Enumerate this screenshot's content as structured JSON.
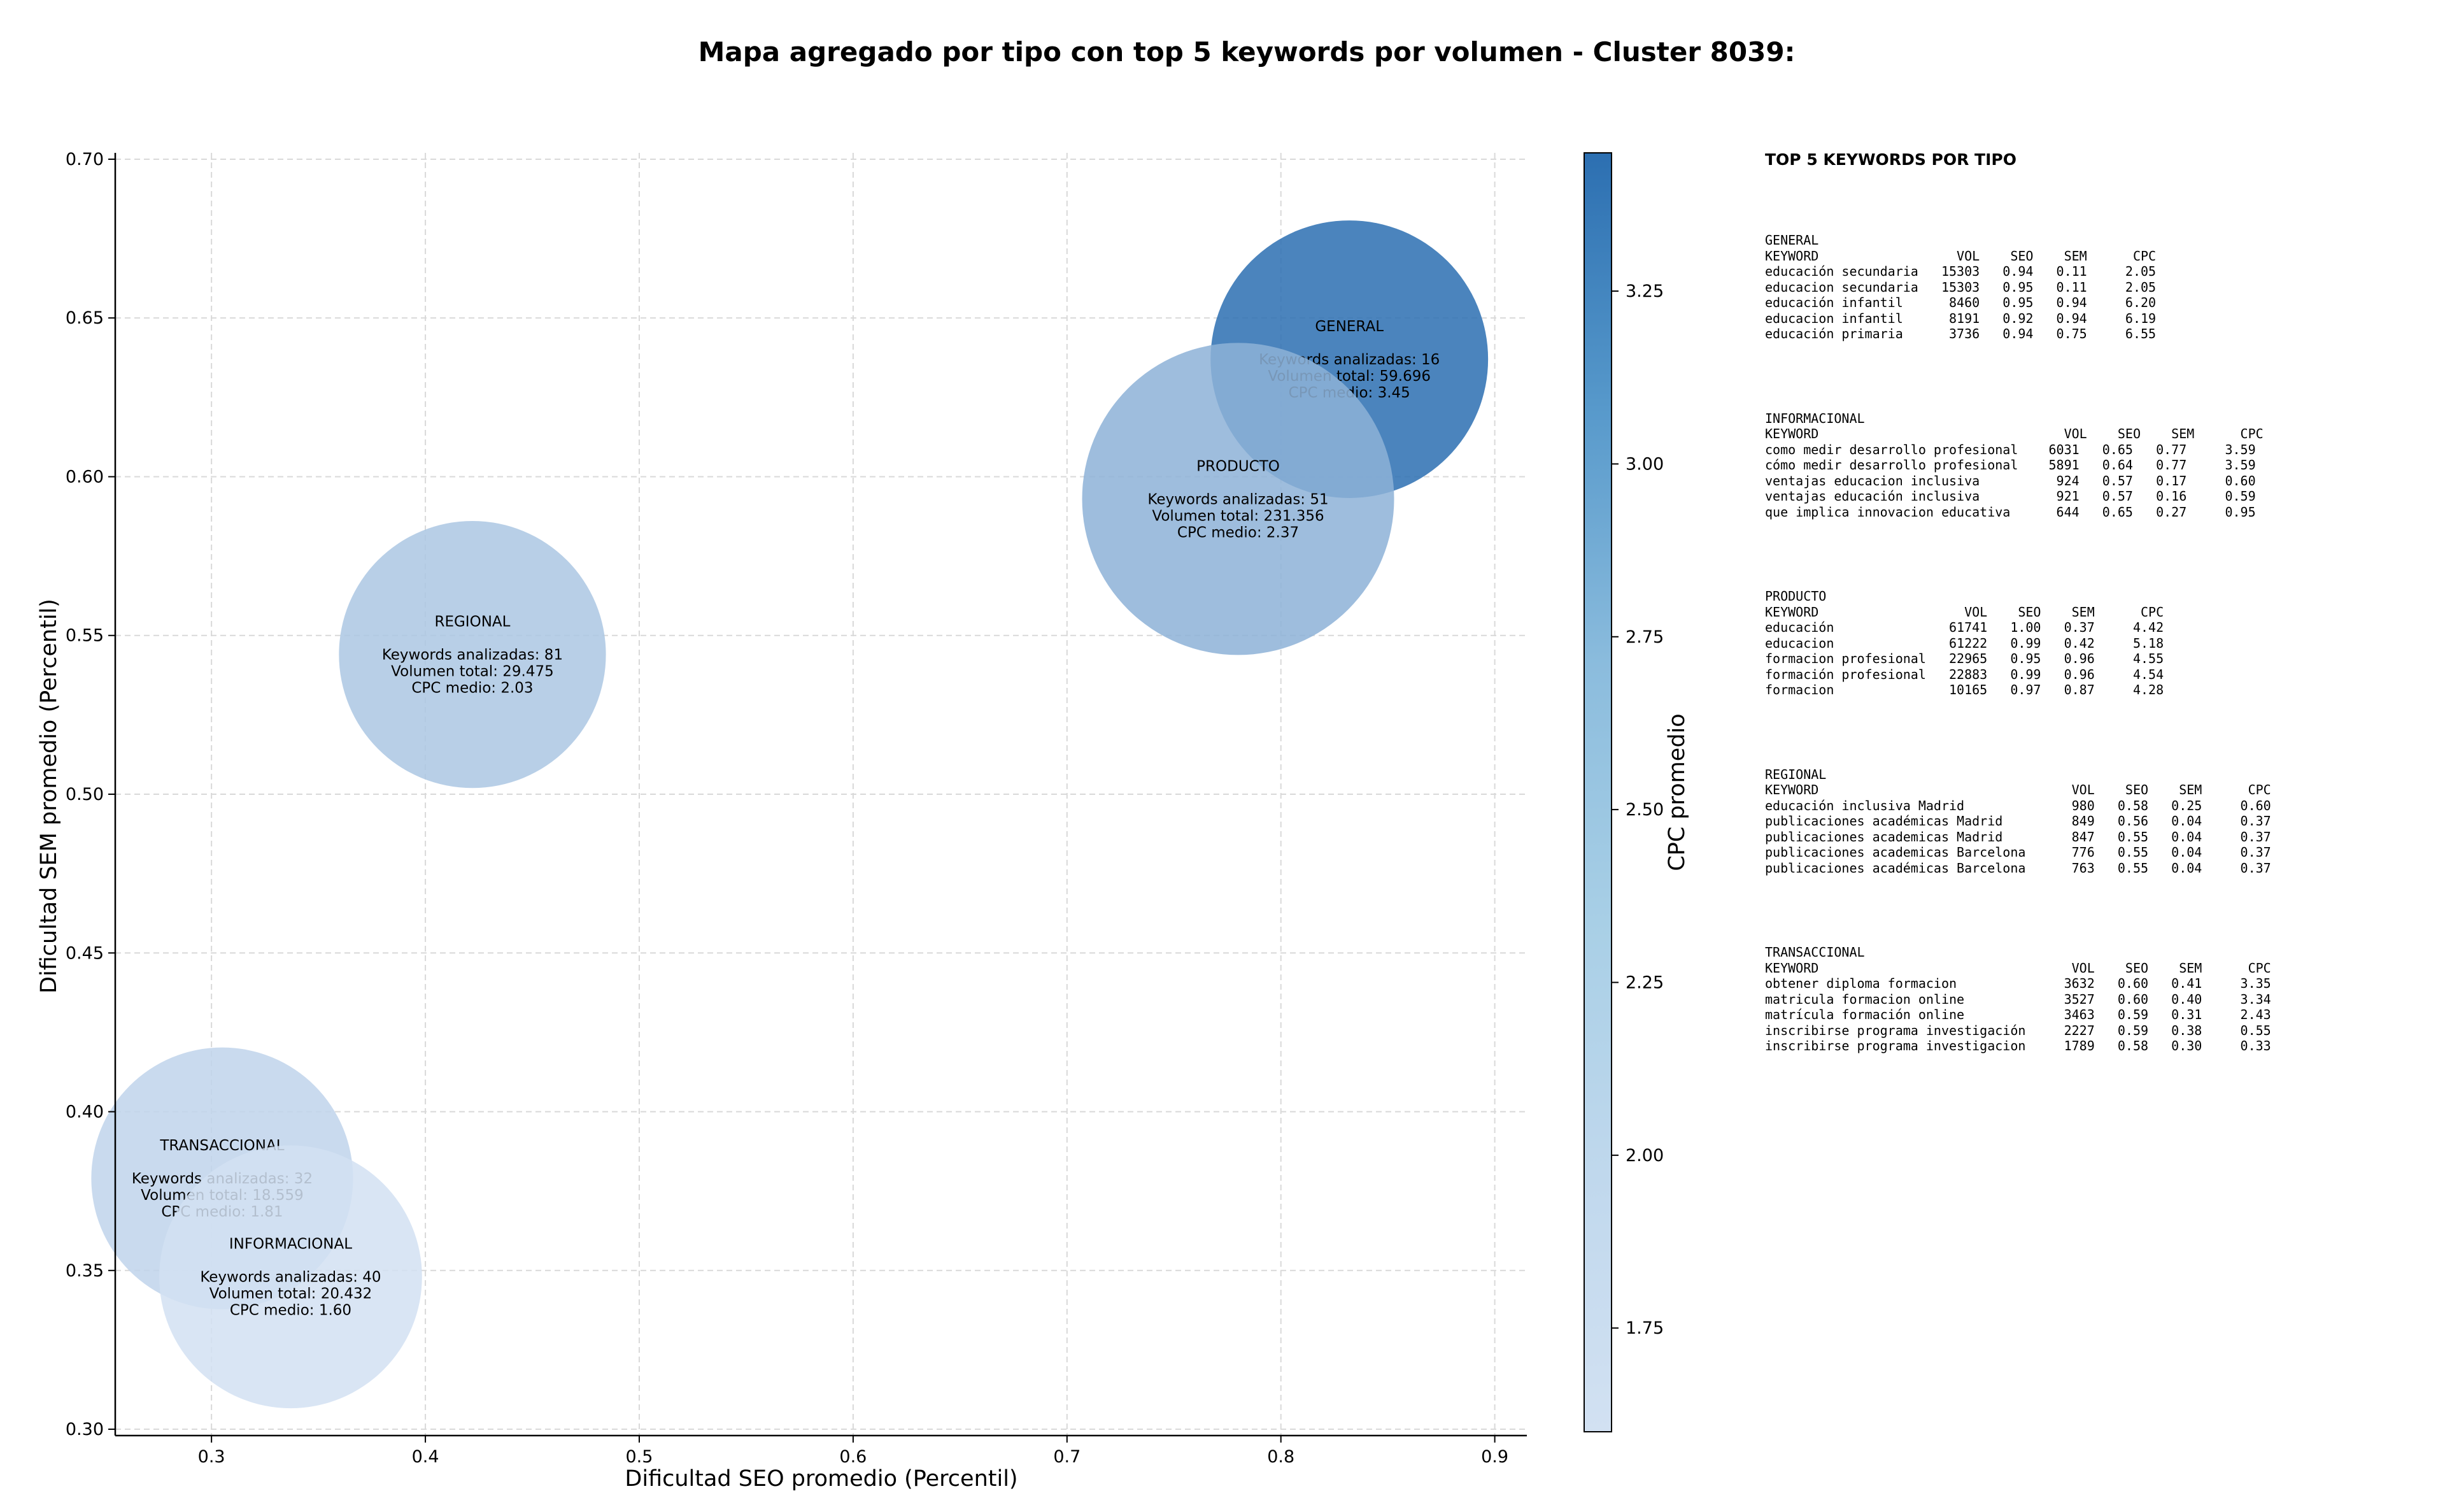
{
  "chart_data": {
    "type": "scatter",
    "title": "Mapa agregado por tipo con top 5 keywords por volumen - Cluster 8039:",
    "xlabel": "Dificultad SEO promedio (Percentil)",
    "ylabel": "Dificultad SEM promedio (Percentil)",
    "xlim": [
      0.255,
      0.915
    ],
    "ylim": [
      0.298,
      0.702
    ],
    "xticks": [
      0.3,
      0.4,
      0.5,
      0.6,
      0.7,
      0.8,
      0.9
    ],
    "yticks": [
      0.3,
      0.35,
      0.4,
      0.45,
      0.5,
      0.55,
      0.6,
      0.65,
      0.7
    ],
    "xtick_labels": [
      "0.3",
      "0.4",
      "0.5",
      "0.6",
      "0.7",
      "0.8",
      "0.9"
    ],
    "ytick_labels": [
      "0.30",
      "0.35",
      "0.40",
      "0.45",
      "0.50",
      "0.55",
      "0.60",
      "0.65",
      "0.70"
    ],
    "grid": true,
    "colorbar": {
      "label": "CPC promedio",
      "min": 1.6,
      "max": 3.45,
      "ticks": [
        1.75,
        2.0,
        2.25,
        2.5,
        2.75,
        3.0,
        3.25
      ],
      "tick_labels": [
        "1.75",
        "2.00",
        "2.25",
        "2.50",
        "2.75",
        "3.00",
        "3.25"
      ],
      "colormap": "Blues",
      "color_low": "#d2e1f2",
      "color_high": "#2c6fb1"
    },
    "points": [
      {
        "label": "GENERAL",
        "x": 0.832,
        "y": 0.637,
        "keywords": 16,
        "volume": 59696,
        "cpc": 3.45,
        "text": [
          "GENERAL",
          "",
          "Keywords analizadas: 16",
          "Volumen total: 59.696",
          "CPC medio: 3.45"
        ]
      },
      {
        "label": "PRODUCTO",
        "x": 0.78,
        "y": 0.593,
        "keywords": 51,
        "volume": 231356,
        "cpc": 2.37,
        "text": [
          "PRODUCTO",
          "",
          "Keywords analizadas: 51",
          "Volumen total: 231.356",
          "CPC medio: 2.37"
        ]
      },
      {
        "label": "REGIONAL",
        "x": 0.422,
        "y": 0.544,
        "keywords": 81,
        "volume": 29475,
        "cpc": 2.03,
        "text": [
          "REGIONAL",
          "",
          "Keywords analizadas: 81",
          "Volumen total: 29.475",
          "CPC medio: 2.03"
        ]
      },
      {
        "label": "TRANSACCIONAL",
        "x": 0.305,
        "y": 0.379,
        "keywords": 32,
        "volume": 18559,
        "cpc": 1.81,
        "text": [
          "TRANSACCIONAL",
          "",
          "Keywords analizadas: 32",
          "Volumen total: 18.559",
          "CPC medio: 1.81"
        ]
      },
      {
        "label": "INFORMACIONAL",
        "x": 0.337,
        "y": 0.348,
        "keywords": 40,
        "volume": 20432,
        "cpc": 1.6,
        "text": [
          "INFORMACIONAL",
          "",
          "Keywords analizadas: 40",
          "Volumen total: 20.432",
          "CPC medio: 1.60"
        ]
      }
    ]
  },
  "table": {
    "heading": "TOP 5 KEYWORDS POR TIPO",
    "blocks": [
      {
        "type": "GENERAL",
        "lines": [
          "GENERAL",
          "KEYWORD                  VOL    SEO    SEM      CPC",
          "educación secundaria   15303   0.94   0.11     2.05",
          "educacion secundaria   15303   0.95   0.11     2.05",
          "educación infantil      8460   0.95   0.94     6.20",
          "educacion infantil      8191   0.92   0.94     6.19",
          "educación primaria      3736   0.94   0.75     6.55"
        ]
      },
      {
        "type": "INFORMACIONAL",
        "lines": [
          "INFORMACIONAL",
          "KEYWORD                                VOL    SEO    SEM      CPC",
          "como medir desarrollo profesional    6031   0.65   0.77     3.59",
          "cómo medir desarrollo profesional    5891   0.64   0.77     3.59",
          "ventajas educacion inclusiva          924   0.57   0.17     0.60",
          "ventajas educación inclusiva          921   0.57   0.16     0.59",
          "que implica innovacion educativa      644   0.65   0.27     0.95"
        ]
      },
      {
        "type": "PRODUCTO",
        "lines": [
          "PRODUCTO",
          "KEYWORD                   VOL    SEO    SEM      CPC",
          "educación               61741   1.00   0.37     4.42",
          "educacion               61222   0.99   0.42     5.18",
          "formacion profesional   22965   0.95   0.96     4.55",
          "formación profesional   22883   0.99   0.96     4.54",
          "formacion               10165   0.97   0.87     4.28"
        ]
      },
      {
        "type": "REGIONAL",
        "lines": [
          "REGIONAL",
          "KEYWORD                                 VOL    SEO    SEM      CPC",
          "educación inclusiva Madrid              980   0.58   0.25     0.60",
          "publicaciones académicas Madrid         849   0.56   0.04     0.37",
          "publicaciones academicas Madrid         847   0.55   0.04     0.37",
          "publicaciones academicas Barcelona      776   0.55   0.04     0.37",
          "publicaciones académicas Barcelona      763   0.55   0.04     0.37"
        ]
      },
      {
        "type": "TRANSACCIONAL",
        "lines": [
          "TRANSACCIONAL",
          "KEYWORD                                 VOL    SEO    SEM      CPC",
          "obtener diploma formacion              3632   0.60   0.41     3.35",
          "matricula formacion online             3527   0.60   0.40     3.34",
          "matrícula formación online             3463   0.59   0.31     2.43",
          "inscribirse programa investigación     2227   0.59   0.38     0.55",
          "inscribirse programa investigacion     1789   0.58   0.30     0.33"
        ]
      }
    ]
  }
}
